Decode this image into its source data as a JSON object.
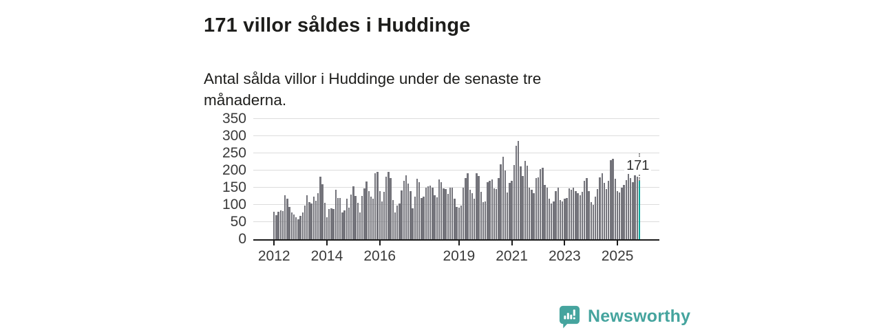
{
  "header": {
    "title": "171 villor såldes i Huddinge",
    "subtitle": "Antal sålda villor i Huddinge under de senaste tre månaderna."
  },
  "annotation": {
    "last_value_label": "171"
  },
  "footer": {
    "brand": "Newsworthy",
    "logo_icon": "bar-chart-speech-bubble-icon"
  },
  "colors": {
    "accent_teal": "#00a69c",
    "logo_teal": "#45a49e",
    "bar_gray": "#74747b",
    "grid": "#dcdcdc",
    "axis": "#1a1a1a",
    "title_text": "#1d1d1b",
    "tick_text": "#3a3a3a"
  },
  "chart_data": {
    "type": "bar",
    "title": "171 villor såldes i Huddinge",
    "xlabel": "",
    "ylabel": "",
    "x_unit": "month",
    "x_start": "2012-01",
    "x_end": "2025-11",
    "ylim": [
      0,
      350
    ],
    "yticks": [
      0,
      50,
      100,
      150,
      200,
      250,
      300,
      350
    ],
    "xticks": [
      {
        "label": "2012",
        "month_index": 0
      },
      {
        "label": "2014",
        "month_index": 24
      },
      {
        "label": "2016",
        "month_index": 48
      },
      {
        "label": "2019",
        "month_index": 84
      },
      {
        "label": "2021",
        "month_index": 108
      },
      {
        "label": "2023",
        "month_index": 132
      },
      {
        "label": "2025",
        "month_index": 156
      }
    ],
    "grid": true,
    "legend_position": "none",
    "highlight_last_bar": true,
    "last_value_label": "171",
    "values": [
      80,
      70,
      80,
      85,
      83,
      129,
      118,
      95,
      78,
      73,
      65,
      59,
      68,
      78,
      98,
      129,
      108,
      105,
      125,
      113,
      135,
      183,
      160,
      106,
      65,
      88,
      90,
      88,
      145,
      121,
      121,
      78,
      85,
      119,
      93,
      131,
      155,
      126,
      106,
      78,
      126,
      148,
      168,
      141,
      125,
      119,
      193,
      196,
      141,
      111,
      138,
      183,
      197,
      178,
      115,
      78,
      99,
      105,
      143,
      171,
      186,
      163,
      141,
      91,
      125,
      176,
      166,
      121,
      125,
      151,
      155,
      156,
      151,
      128,
      123,
      175,
      166,
      148,
      146,
      133,
      151,
      151,
      118,
      95,
      93,
      98,
      151,
      178,
      193,
      145,
      135,
      118,
      193,
      185,
      138,
      108,
      111,
      166,
      171,
      175,
      148,
      146,
      178,
      219,
      241,
      201,
      137,
      165,
      170,
      217,
      273,
      286,
      213,
      185,
      228,
      215,
      151,
      145,
      135,
      178,
      181,
      205,
      208,
      158,
      151,
      118,
      105,
      111,
      141,
      151,
      115,
      111,
      118,
      121,
      148,
      145,
      151,
      141,
      135,
      128,
      138,
      171,
      178,
      141,
      108,
      101,
      125,
      146,
      181,
      193,
      165,
      146,
      171,
      231,
      235,
      176,
      141,
      136,
      151,
      159,
      173,
      193,
      178,
      166,
      186,
      183,
      171
    ]
  }
}
